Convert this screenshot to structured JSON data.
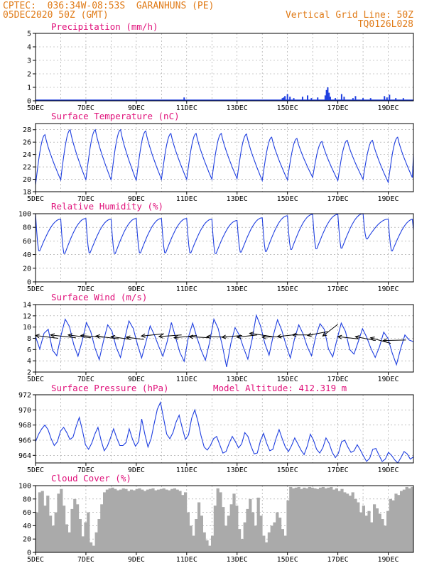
{
  "header": {
    "line1_left": "CPTEC:  036:34W-08:53S  GARANHUNS (PE)",
    "line2_left": "05DEC2020 50Z (GMT)",
    "line1_right": "Vertical Grid Line: 50Z",
    "line2_right": "TQ0126L028"
  },
  "colors": {
    "header": "#e07b18",
    "title": "#e0107a",
    "series": "#1f3fe0",
    "cloud": "#aaaaaa",
    "frame": "#000000",
    "grid": "#999999"
  },
  "x_axis": {
    "labels": [
      "5DEC",
      "7DEC",
      "9DEC",
      "11DEC",
      "13DEC",
      "15DEC",
      "17DEC",
      "19DEC"
    ],
    "start_day": 5,
    "end_day": 20
  },
  "chart_data": [
    {
      "id": "precip",
      "type": "bar",
      "title": "Precipitation (mm/h)",
      "ylim": [
        0,
        5
      ],
      "yticks": [
        0,
        1,
        2,
        3,
        4,
        5
      ],
      "points": [
        [
          10.9,
          0.25
        ],
        [
          14.8,
          0.2
        ],
        [
          14.85,
          0.25
        ],
        [
          14.9,
          0.35
        ],
        [
          15.0,
          0.5
        ],
        [
          15.1,
          0.3
        ],
        [
          15.25,
          0.2
        ],
        [
          15.6,
          0.3
        ],
        [
          15.8,
          0.4
        ],
        [
          15.95,
          0.2
        ],
        [
          16.2,
          0.25
        ],
        [
          16.5,
          0.4
        ],
        [
          16.55,
          0.8
        ],
        [
          16.6,
          1.0
        ],
        [
          16.65,
          0.6
        ],
        [
          16.7,
          0.3
        ],
        [
          16.9,
          0.2
        ],
        [
          17.15,
          0.5
        ],
        [
          17.25,
          0.3
        ],
        [
          17.6,
          0.2
        ],
        [
          17.7,
          0.35
        ],
        [
          18.0,
          0.2
        ],
        [
          18.3,
          0.2
        ],
        [
          18.85,
          0.35
        ],
        [
          18.95,
          0.25
        ],
        [
          19.05,
          0.45
        ],
        [
          19.3,
          0.2
        ],
        [
          19.6,
          0.2
        ]
      ],
      "baseline": 0.06
    },
    {
      "id": "temp",
      "type": "line",
      "title": "Surface Temperature (nC)",
      "ylim": [
        18,
        29
      ],
      "yticks": [
        18,
        20,
        22,
        24,
        26,
        28
      ],
      "lows": [
        19.1,
        19.9,
        19.9,
        19.9,
        19.8,
        20.0,
        20.0,
        20.0,
        20.1,
        19.8,
        19.9,
        20.3,
        19.8,
        20.0,
        19.5,
        19.9
      ],
      "highs": [
        27.2,
        28.0,
        28.0,
        28.0,
        27.8,
        27.4,
        27.4,
        27.4,
        27.3,
        26.8,
        26.6,
        26.1,
        26.3,
        26.3,
        26.8,
        28.6
      ],
      "end_value": 24.0
    },
    {
      "id": "rh",
      "type": "line",
      "title": "Relative Humidity (%)",
      "ylim": [
        0,
        100
      ],
      "yticks": [
        0,
        20,
        40,
        60,
        80,
        100
      ],
      "highs": [
        100,
        92,
        93,
        92,
        93,
        93,
        93,
        92,
        90,
        94,
        97,
        99,
        99,
        100,
        92,
        92
      ],
      "lows": [
        44,
        40,
        41,
        40,
        41,
        41,
        41,
        40,
        42,
        43,
        46,
        47,
        48,
        62,
        44,
        45
      ],
      "end_value": 76
    },
    {
      "id": "wind",
      "type": "line",
      "title": "Surface Wind (m/s)",
      "ylim": [
        2,
        14
      ],
      "yticks": [
        2,
        4,
        6,
        8,
        10,
        12,
        14
      ],
      "values": [
        8.3,
        6.1,
        8.9,
        9.6,
        5.9,
        4.9,
        8.5,
        11.4,
        10.1,
        6.9,
        4.8,
        7.6,
        10.8,
        9.2,
        6.3,
        4.2,
        7.5,
        10.4,
        9.3,
        6.4,
        4.6,
        7.9,
        11.1,
        9.8,
        6.9,
        4.5,
        7.3,
        10.2,
        8.6,
        6.6,
        4.8,
        7.4,
        10.8,
        8.1,
        5.5,
        3.9,
        8.2,
        10.7,
        8.2,
        5.9,
        4.1,
        7.3,
        11.4,
        9.8,
        6.7,
        2.9,
        7.1,
        9.9,
        8.6,
        6.3,
        4.3,
        7.8,
        12.1,
        10.2,
        7.1,
        5.0,
        8.5,
        11.3,
        9.4,
        6.8,
        4.5,
        7.9,
        10.4,
        8.8,
        6.5,
        4.9,
        8.3,
        10.6,
        9.6,
        6.1,
        4.7,
        7.8,
        10.7,
        9.2,
        6.0,
        5.2,
        7.4,
        9.7,
        8.2,
        6.2,
        4.6,
        6.5,
        9.1,
        8.0,
        5.4,
        3.3,
        6.2,
        8.6,
        7.7,
        7.4
      ],
      "arrows": [
        [
          5.0,
          8.5,
          5.9,
          8.0
        ],
        [
          5.6,
          8.6,
          6.6,
          8.1
        ],
        [
          6.3,
          8.6,
          7.2,
          8.1
        ],
        [
          6.8,
          8.5,
          7.7,
          8.2
        ],
        [
          7.4,
          8.4,
          8.3,
          7.9
        ],
        [
          8.0,
          8.3,
          8.8,
          7.8
        ],
        [
          8.6,
          8.2,
          9.3,
          7.8
        ],
        [
          9.2,
          8.4,
          10.1,
          8.8
        ],
        [
          9.9,
          8.3,
          10.8,
          8.6
        ],
        [
          10.5,
          8.1,
          11.4,
          8.5
        ],
        [
          11.1,
          8.3,
          11.9,
          8.1
        ],
        [
          11.8,
          8.3,
          12.6,
          8.2
        ],
        [
          12.4,
          8.2,
          13.2,
          8.5
        ],
        [
          13.0,
          8.2,
          13.8,
          8.6
        ],
        [
          13.5,
          8.9,
          14.4,
          8.3
        ],
        [
          14.0,
          8.2,
          14.8,
          8.3
        ],
        [
          14.6,
          8.3,
          15.4,
          8.7
        ],
        [
          15.2,
          8.6,
          16.0,
          8.6
        ],
        [
          15.8,
          8.5,
          16.6,
          9.2
        ],
        [
          16.4,
          8.4,
          17.0,
          10.5
        ],
        [
          17.0,
          8.3,
          17.8,
          7.9
        ],
        [
          17.7,
          8.3,
          18.5,
          7.6
        ],
        [
          18.3,
          8.1,
          19.1,
          7.1
        ],
        [
          18.8,
          7.6,
          19.7,
          7.7
        ]
      ]
    },
    {
      "id": "pressure",
      "type": "line",
      "title": "Surface Pressure (hPa)",
      "annotation": "Model Altitude: 412.319 m",
      "ylim": [
        963,
        972
      ],
      "yticks": [
        964,
        966,
        968,
        970,
        972
      ],
      "values": [
        965.8,
        966.8,
        967.5,
        968.0,
        967.4,
        966.2,
        965.3,
        965.8,
        967.2,
        967.7,
        967.0,
        966.1,
        966.4,
        967.8,
        969.0,
        967.3,
        965.4,
        964.8,
        965.6,
        966.8,
        967.7,
        966.0,
        964.6,
        965.2,
        966.3,
        967.5,
        966.3,
        965.3,
        965.3,
        965.7,
        967.5,
        966.2,
        965.2,
        965.8,
        968.8,
        966.8,
        965.1,
        966.2,
        968.2,
        970.1,
        971.0,
        968.9,
        966.8,
        966.2,
        967.0,
        968.4,
        969.3,
        967.6,
        966.1,
        966.7,
        968.9,
        970.0,
        968.5,
        966.6,
        965.1,
        964.7,
        965.3,
        966.2,
        966.5,
        965.4,
        964.3,
        964.5,
        965.6,
        966.5,
        965.8,
        965.0,
        965.5,
        967.0,
        966.5,
        965.2,
        964.2,
        964.3,
        965.9,
        966.9,
        965.6,
        964.6,
        964.8,
        966.2,
        967.4,
        966.2,
        965.1,
        964.5,
        965.3,
        966.3,
        965.5,
        964.7,
        964.1,
        965.2,
        966.8,
        966.0,
        964.8,
        964.3,
        965.0,
        966.3,
        965.6,
        964.4,
        963.7,
        964.3,
        965.8,
        966.0,
        965.1,
        964.4,
        964.6,
        965.4,
        964.7,
        963.9,
        963.2,
        963.6,
        964.8,
        964.9,
        964.0,
        963.2,
        963.5,
        964.4,
        964.0,
        963.4,
        963.0,
        963.7,
        964.5,
        964.2,
        963.5,
        963.8
      ]
    },
    {
      "id": "cloud",
      "type": "area",
      "title": "Cloud Cover (%)",
      "ylim": [
        0,
        100
      ],
      "yticks": [
        0,
        20,
        40,
        60,
        80,
        100
      ],
      "values": [
        60,
        90,
        92,
        70,
        85,
        55,
        40,
        60,
        88,
        95,
        70,
        42,
        30,
        65,
        80,
        72,
        50,
        24,
        45,
        60,
        15,
        10,
        30,
        50,
        72,
        90,
        94,
        96,
        97,
        95,
        93,
        94,
        96,
        95,
        92,
        94,
        93,
        95,
        96,
        94,
        92,
        94,
        95,
        96,
        93,
        94,
        95,
        96,
        94,
        93,
        95,
        96,
        94,
        92,
        86,
        90,
        60,
        40,
        25,
        50,
        75,
        55,
        30,
        18,
        10,
        25,
        70,
        96,
        90,
        68,
        40,
        55,
        72,
        88,
        70,
        35,
        20,
        45,
        65,
        80,
        60,
        40,
        82,
        55,
        25,
        15,
        30,
        40,
        45,
        60,
        52,
        35,
        25,
        78,
        98,
        96,
        97,
        98,
        95,
        97,
        96,
        98,
        97,
        96,
        95,
        97,
        98,
        96,
        97,
        98,
        94,
        96,
        92,
        95,
        90,
        88,
        85,
        90,
        80,
        75,
        60,
        70,
        55,
        62,
        45,
        72,
        66,
        58,
        50,
        40,
        62,
        80,
        78,
        88,
        86,
        92,
        94,
        98,
        96,
        98
      ]
    }
  ]
}
